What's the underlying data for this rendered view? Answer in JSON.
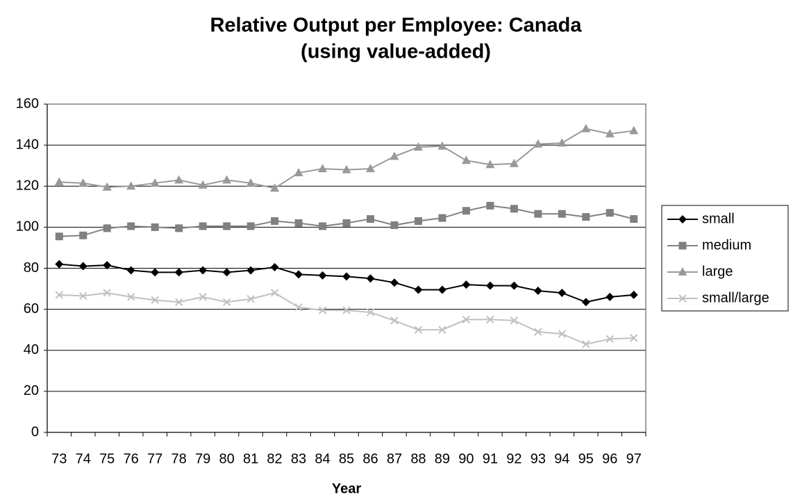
{
  "chart_data": {
    "type": "line",
    "title": "Relative Output per Employee:  Canada",
    "subtitle": "(using value-added)",
    "xlabel": "Year",
    "categories": [
      "73",
      "74",
      "75",
      "76",
      "77",
      "78",
      "79",
      "80",
      "81",
      "82",
      "83",
      "84",
      "85",
      "86",
      "87",
      "88",
      "89",
      "90",
      "91",
      "92",
      "93",
      "94",
      "95",
      "96",
      "97"
    ],
    "series": [
      {
        "name": "small",
        "color": "#000000",
        "marker": "diamond",
        "values": [
          82,
          81,
          81.5,
          79,
          78,
          78,
          79,
          78,
          79,
          80.5,
          77,
          76.5,
          76,
          75,
          73,
          69.5,
          69.5,
          72,
          71.5,
          71.5,
          69,
          68,
          63.5,
          66,
          67
        ]
      },
      {
        "name": "medium",
        "color": "#808080",
        "marker": "square",
        "values": [
          95.5,
          96,
          99.5,
          100.5,
          100,
          99.5,
          100.5,
          100.5,
          100.5,
          103,
          102,
          100.5,
          102,
          104,
          101,
          103,
          104.5,
          108,
          110.5,
          109,
          106.5,
          106.5,
          105,
          107,
          104
        ]
      },
      {
        "name": "large",
        "color": "#999999",
        "marker": "triangle",
        "values": [
          122,
          121.5,
          119.5,
          120,
          121.5,
          123,
          120.5,
          123,
          121.5,
          119,
          126.5,
          128.5,
          128,
          128.5,
          134.5,
          139,
          139.5,
          132.5,
          130.5,
          131,
          140.5,
          141,
          148,
          145.5,
          147
        ]
      },
      {
        "name": "small/large",
        "color": "#c0c0c0",
        "marker": "x",
        "values": [
          67,
          66.5,
          68,
          66,
          64.5,
          63.5,
          66,
          63.5,
          65,
          68,
          61,
          59.5,
          59.5,
          58.5,
          54.5,
          50,
          50,
          55,
          55,
          54.5,
          49,
          48,
          43,
          45.5,
          46
        ]
      }
    ],
    "ylim": [
      0,
      160
    ],
    "yticks": [
      0,
      20,
      40,
      60,
      80,
      100,
      120,
      140,
      160
    ],
    "grid": true,
    "legend": "right"
  }
}
